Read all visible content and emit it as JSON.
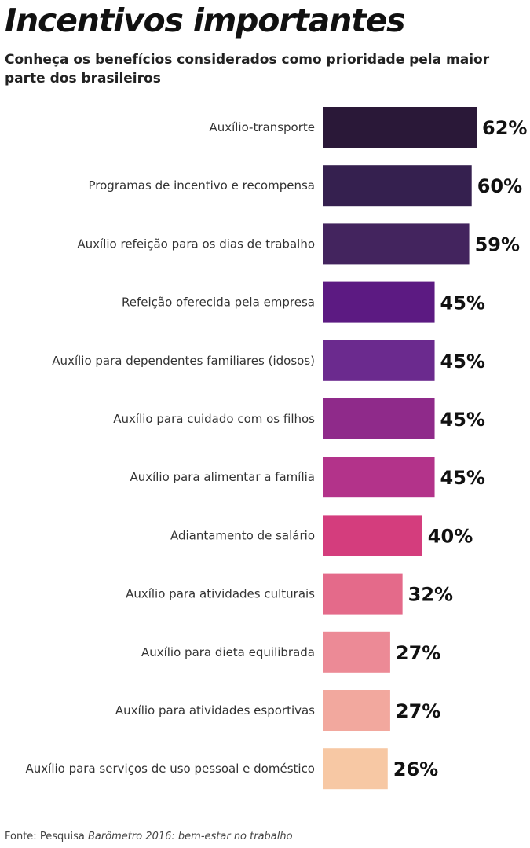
{
  "header": {
    "title": "Incentivos importantes",
    "subtitle": "Conheça os benefícios considerados como prioridade pela maior parte dos brasileiros"
  },
  "chart_data": {
    "type": "bar",
    "orientation": "horizontal",
    "categories": [
      "Auxílio-transporte",
      "Programas de incentivo e recompensa",
      "Auxílio refeição para os dias de trabalho",
      "Refeição oferecida pela empresa",
      "Auxílio para dependentes familiares (idosos)",
      "Auxílio para cuidado com os filhos",
      "Auxílio para alimentar a família",
      "Adiantamento de salário",
      "Auxílio para atividades culturais",
      "Auxílio para dieta equilibrada",
      "Auxílio para atividades esportivas",
      "Auxílio para serviços de uso pessoal e doméstico"
    ],
    "values": [
      62,
      60,
      59,
      45,
      45,
      45,
      45,
      40,
      32,
      27,
      27,
      26
    ],
    "value_labels": [
      "62%",
      "60%",
      "59%",
      "45%",
      "45%",
      "45%",
      "45%",
      "40%",
      "32%",
      "27%",
      "27%",
      "26%"
    ],
    "colors": [
      "#2a1838",
      "#35204f",
      "#43245e",
      "#5c1a82",
      "#6b2a8e",
      "#8f2a8a",
      "#b3338a",
      "#d43d7d",
      "#e46a8a",
      "#ec8a96",
      "#f2a89e",
      "#f7c8a4"
    ],
    "grid": false,
    "legend": "none"
  },
  "source": {
    "prefix": "Fonte: Pesquisa ",
    "name": "Barômetro 2016: bem-estar no trabalho"
  }
}
